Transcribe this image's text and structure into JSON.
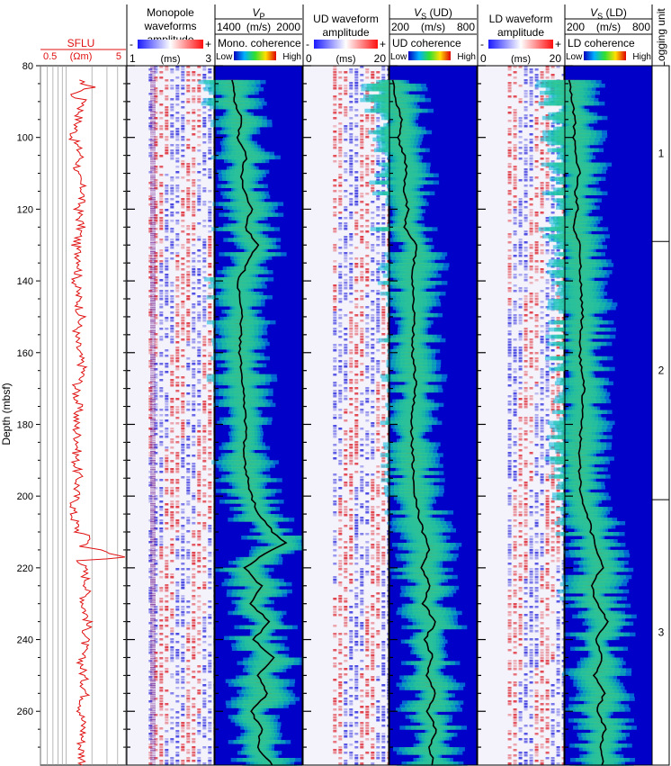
{
  "chart_data": {
    "type": "line",
    "depth_axis": {
      "label": "Depth (mbsf)",
      "range": [
        80,
        275
      ],
      "ticks": [
        "80",
        "100",
        "120",
        "140",
        "160",
        "180",
        "200",
        "220",
        "240",
        "260"
      ]
    },
    "sflu": {
      "title": "SFLU",
      "unit": "(Ωm)",
      "range": [
        0.5,
        5
      ],
      "ticks": [
        "0.5",
        "5"
      ],
      "color": "#e01010",
      "depth": [
        84,
        86,
        88,
        90,
        92,
        95,
        100,
        105,
        110,
        115,
        120,
        125,
        130,
        135,
        140,
        145,
        150,
        155,
        160,
        165,
        170,
        175,
        180,
        185,
        190,
        195,
        200,
        205,
        210,
        212,
        214,
        216,
        217,
        218,
        220,
        225,
        230,
        235,
        240,
        245,
        250,
        255,
        260,
        265,
        270,
        275
      ],
      "value": [
        1.3,
        2.0,
        1.1,
        1.7,
        1.5,
        1.4,
        1.2,
        1.5,
        1.3,
        1.6,
        1.4,
        1.5,
        1.3,
        1.5,
        1.3,
        1.4,
        1.5,
        1.3,
        1.4,
        1.6,
        1.3,
        1.4,
        1.3,
        1.4,
        1.3,
        1.4,
        1.3,
        1.2,
        1.4,
        2.0,
        1.6,
        3.2,
        4.8,
        1.5,
        1.6,
        1.8,
        1.6,
        1.8,
        1.7,
        1.5,
        1.6,
        1.7,
        1.5,
        1.6,
        1.5,
        1.6
      ]
    },
    "panels": [
      {
        "kind": "waveform",
        "title_lines": [
          "Monopole",
          "waveforms",
          "amplitude"
        ],
        "minus": "-",
        "plus": "+",
        "axis_min": "1",
        "axis_unit": "(ms)",
        "axis_max": "3"
      },
      {
        "kind": "coherence",
        "velocity_title": "V",
        "velocity_sub": "P",
        "velocity_range": [
          "1400",
          "(m/s)",
          "2000"
        ],
        "vmin": 1400,
        "vmax": 2000,
        "coherence_label": "Mono. coherence",
        "low": "Low",
        "high": "High",
        "depth": [
          84,
          90,
          95,
          100,
          105,
          110,
          115,
          120,
          125,
          130,
          140,
          150,
          160,
          170,
          180,
          190,
          200,
          205,
          210,
          213,
          216,
          220,
          225,
          230,
          235,
          240,
          245,
          250,
          255,
          260,
          265,
          270,
          275
        ],
        "velocity": [
          1520,
          1540,
          1580,
          1560,
          1620,
          1580,
          1600,
          1650,
          1610,
          1690,
          1560,
          1580,
          1570,
          1590,
          1610,
          1600,
          1650,
          1700,
          1800,
          1890,
          1750,
          1600,
          1720,
          1640,
          1780,
          1660,
          1800,
          1690,
          1760,
          1650,
          1720,
          1690,
          1800
        ]
      },
      {
        "kind": "waveform",
        "title_lines": [
          "UD waveform",
          "amplitude"
        ],
        "minus": "-",
        "plus": "+",
        "axis_min": "0",
        "axis_unit": "(ms)",
        "axis_max": "20"
      },
      {
        "kind": "coherence",
        "velocity_title": "V",
        "velocity_sub": "S",
        "velocity_suffix": " (UD)",
        "velocity_range": [
          "200",
          "(m/s)",
          "800"
        ],
        "vmin": 200,
        "vmax": 800,
        "coherence_label": "UD coherence",
        "low": "Low",
        "high": "High",
        "depth": [
          84,
          90,
          95,
          100,
          105,
          110,
          115,
          120,
          125,
          130,
          140,
          150,
          160,
          170,
          180,
          190,
          200,
          205,
          210,
          215,
          220,
          225,
          230,
          235,
          240,
          245,
          250,
          255,
          260,
          265,
          270,
          275
        ],
        "velocity": [
          230,
          240,
          290,
          260,
          300,
          320,
          290,
          330,
          300,
          380,
          360,
          370,
          360,
          380,
          350,
          360,
          380,
          400,
          430,
          470,
          420,
          480,
          430,
          520,
          440,
          500,
          450,
          520,
          460,
          520,
          480,
          500
        ]
      },
      {
        "kind": "waveform",
        "title_lines": [
          "LD waveform",
          "amplitude"
        ],
        "minus": "-",
        "plus": "+",
        "axis_min": "0",
        "axis_unit": "(ms)",
        "axis_max": "20"
      },
      {
        "kind": "coherence",
        "velocity_title": "V",
        "velocity_sub": "S",
        "velocity_suffix": " (LD)",
        "velocity_range": [
          "200",
          "(m/s)",
          "800"
        ],
        "vmin": 200,
        "vmax": 800,
        "coherence_label": "LD coherence",
        "low": "Low",
        "high": "High",
        "depth": [
          84,
          90,
          95,
          100,
          105,
          110,
          115,
          120,
          125,
          130,
          140,
          150,
          160,
          170,
          180,
          190,
          200,
          205,
          210,
          215,
          220,
          225,
          230,
          235,
          240,
          245,
          250,
          255,
          260,
          265,
          270,
          275
        ],
        "velocity": [
          230,
          250,
          270,
          260,
          280,
          300,
          270,
          290,
          260,
          300,
          310,
          320,
          300,
          330,
          310,
          300,
          310,
          360,
          380,
          420,
          460,
          380,
          420,
          500,
          410,
          460,
          400,
          470,
          420,
          480,
          440,
          460
        ]
      }
    ],
    "logging_units": {
      "title": "Logging unit",
      "units": [
        {
          "label": "1",
          "top": 80,
          "bottom": 129
        },
        {
          "label": "2",
          "top": 129,
          "bottom": 201
        },
        {
          "label": "3",
          "top": 201,
          "bottom": 275
        }
      ]
    }
  }
}
